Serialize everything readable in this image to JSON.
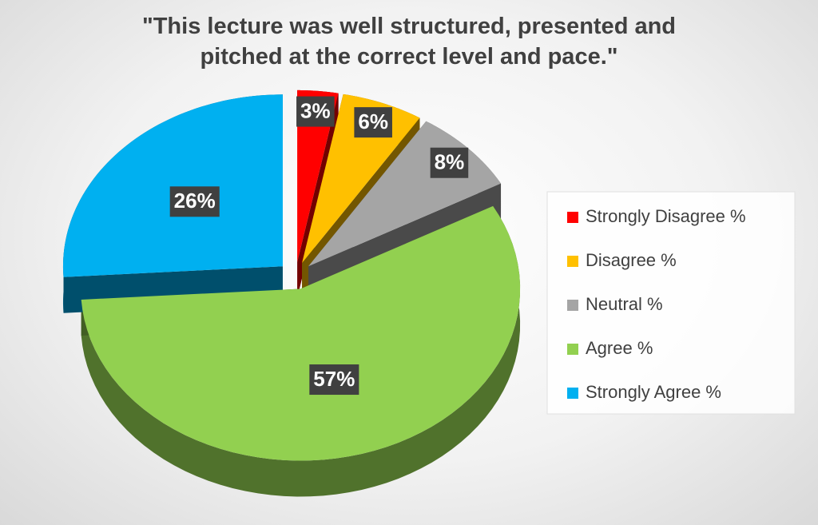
{
  "chart_data": {
    "type": "pie",
    "title": "\"This lecture was well structured, presented and pitched at the correct level and pace.\"",
    "categories": [
      "Strongly Disagree %",
      "Disagree %",
      "Neutral %",
      "Agree %",
      "Strongly Agree %"
    ],
    "values": [
      3,
      6,
      8,
      57,
      26
    ],
    "value_labels": [
      "3%",
      "6%",
      "8%",
      "57%",
      "26%"
    ],
    "colors": [
      "#ff0000",
      "#ffc000",
      "#a5a5a5",
      "#92d050",
      "#00b0f0"
    ],
    "legend": "right"
  }
}
